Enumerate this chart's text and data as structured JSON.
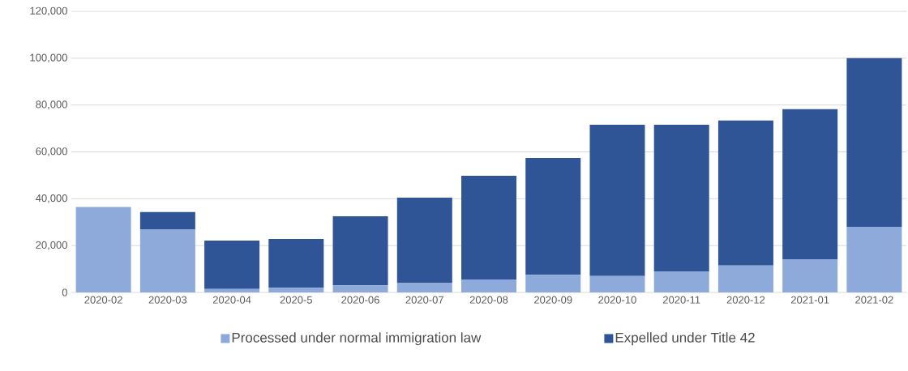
{
  "chart_data": {
    "type": "bar",
    "stacked": true,
    "categories": [
      "2020-02",
      "2020-03",
      "2020-04",
      "2020-5",
      "2020-06",
      "2020-07",
      "2020-08",
      "2020-09",
      "2020-10",
      "2020-11",
      "2020-12",
      "2021-01",
      "2021-02"
    ],
    "series": [
      {
        "name": "Processed under normal immigration law",
        "color": "#8eaadb",
        "values": [
          36500,
          27000,
          1500,
          2000,
          3000,
          4000,
          5500,
          7500,
          7000,
          9000,
          11500,
          14000,
          28000
        ]
      },
      {
        "name": "Expelled under Title 42",
        "color": "#2f5597",
        "values": [
          0,
          7300,
          20600,
          20800,
          29500,
          36500,
          44300,
          49900,
          64600,
          62600,
          61900,
          64200,
          72000
        ]
      }
    ],
    "ylim": [
      0,
      120000
    ],
    "yticks": [
      {
        "value": 0,
        "label": "0"
      },
      {
        "value": 20000,
        "label": "20,000"
      },
      {
        "value": 40000,
        "label": "40,000"
      },
      {
        "value": 60000,
        "label": "60,000"
      },
      {
        "value": 80000,
        "label": "80,000"
      },
      {
        "value": 100000,
        "label": "100,000"
      },
      {
        "value": 120000,
        "label": "120,000"
      }
    ],
    "grid": "y",
    "legend": "bottom"
  }
}
